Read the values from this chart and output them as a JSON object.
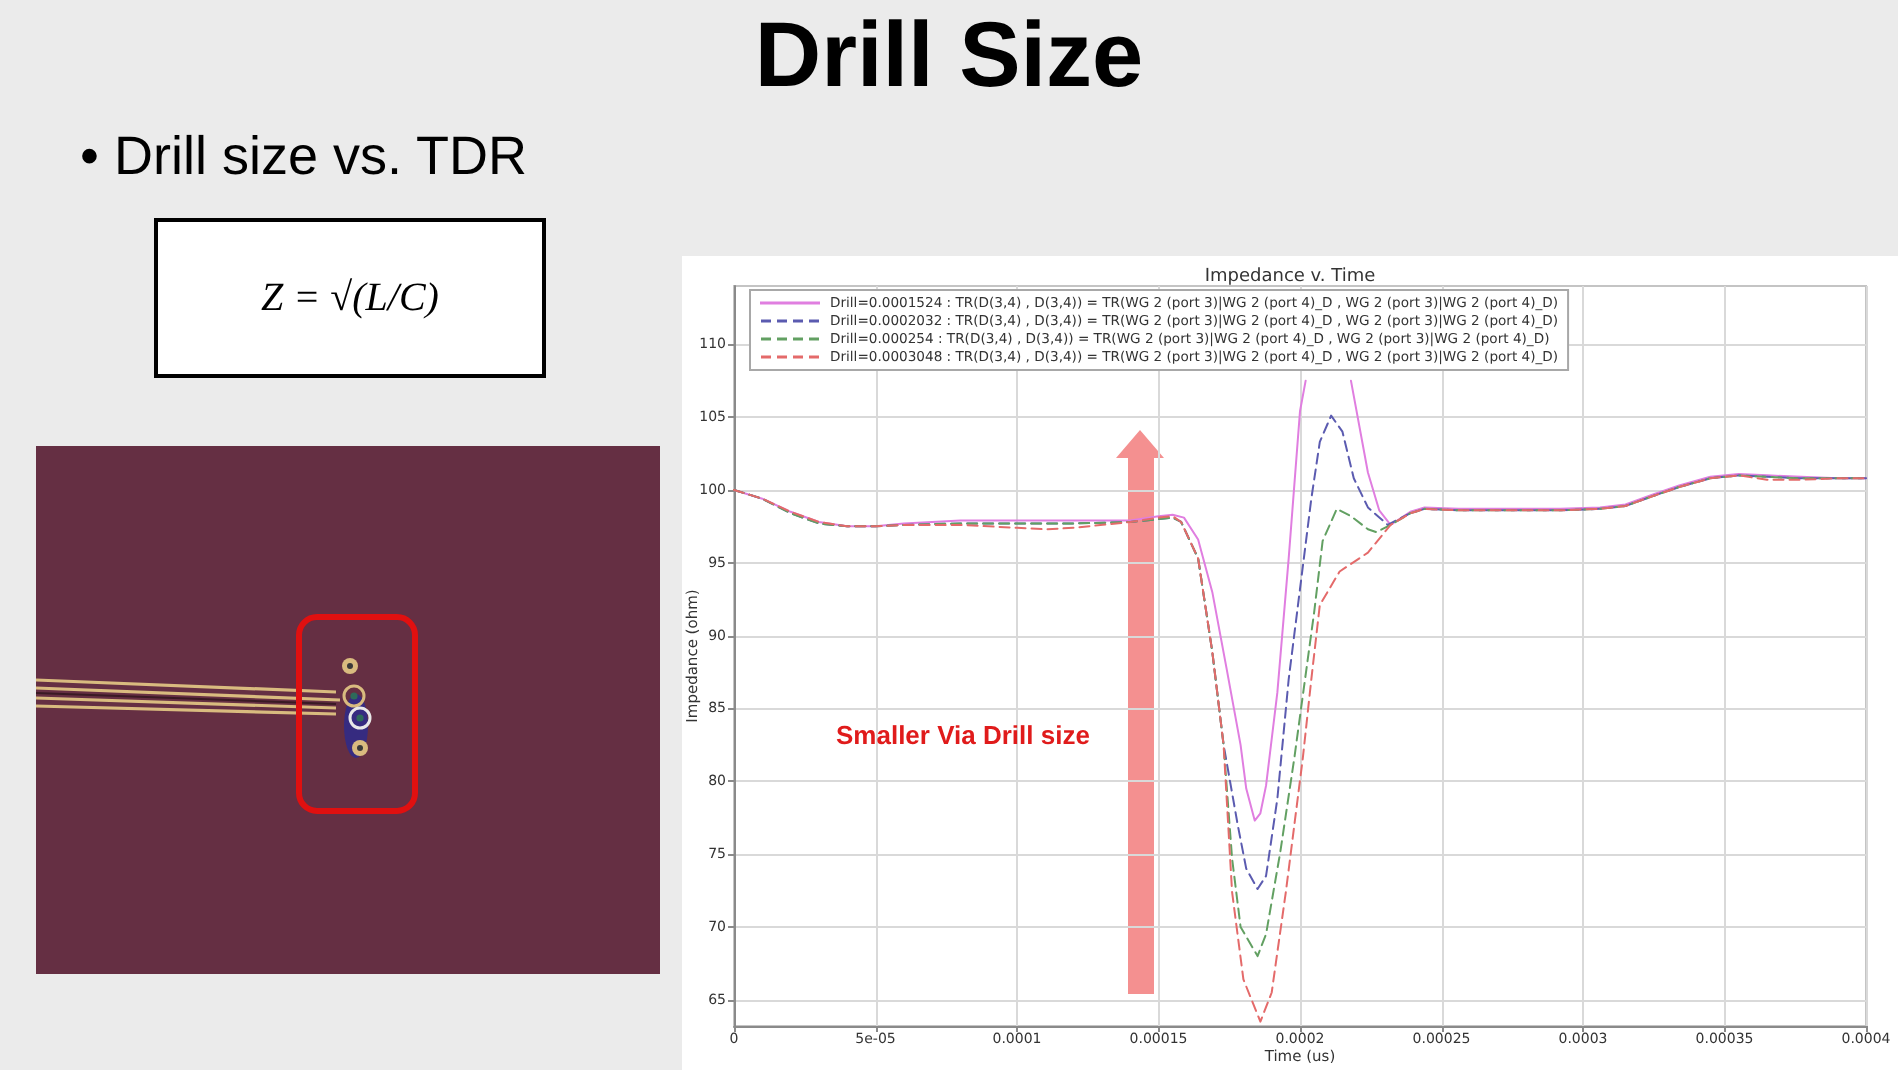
{
  "chart_data": {
    "type": "line",
    "title": "Impedance v. Time",
    "xlabel": "Time (us)",
    "ylabel": "Impedance (ohm)",
    "annotations": [
      "Drill Size",
      "• Drill size vs. TDR",
      "Z = √(L/C)",
      "Smaller Via Drill size"
    ],
    "xlim": [
      0,
      0.0004
    ],
    "xticks": [
      0,
      {
        "value": 5e-05,
        "label": "5e-05"
      },
      0.0001,
      0.00015,
      0.0002,
      0.00025,
      0.0003,
      0.00035,
      0.0004
    ],
    "ylim": [
      63.2,
      114
    ],
    "yticks": [
      65,
      70,
      75,
      80,
      85,
      90,
      95,
      100,
      105,
      110
    ],
    "grid": true,
    "legend": "top left",
    "marker": "none",
    "series": [
      {
        "name": "Drill=0.0001524 : TR(D(3,4) , D(3,4)) = TR(WG 2 (port 3)|WG 2 (port 4)_D , WG 2 (port 3)|WG 2 (port 4)_D)",
        "color": "#e07ee0",
        "line_style": "solid",
        "x": [
          0,
          1e-05,
          2e-05,
          3e-05,
          4e-05,
          5e-05,
          6e-05,
          8e-05,
          0.0001,
          0.00012,
          0.00014,
          0.00015,
          0.000155,
          0.000159,
          0.000164,
          0.000169,
          0.000174,
          0.000179,
          0.000181,
          0.000184,
          0.000186,
          0.000188,
          0.000192,
          0.000196,
          0.0002,
          0.000202,
          0.00021,
          0.000218,
          0.000224,
          0.000228,
          0.000232,
          0.000239,
          0.000244,
          0.000256,
          0.000271,
          0.000292,
          0.000306,
          0.000315,
          0.000325,
          0.000334,
          0.000345,
          0.000355,
          0.000365,
          0.000377,
          0.00039,
          0.0004
        ],
        "values": [
          100,
          99.4,
          98.5,
          97.8,
          97.5,
          97.5,
          97.7,
          97.9,
          97.9,
          97.9,
          97.9,
          98.2,
          98.3,
          98.1,
          96.6,
          93.0,
          87.8,
          82.5,
          79.5,
          77.3,
          77.8,
          79.7,
          86.1,
          95.3,
          105.4,
          107.5,
          null,
          107.5,
          101.2,
          98.6,
          97.6,
          98.5,
          98.8,
          98.7,
          98.7,
          98.7,
          98.8,
          99.0,
          99.7,
          100.3,
          100.9,
          101.1,
          101.0,
          100.9,
          100.8,
          100.8
        ]
      },
      {
        "name": "Drill=0.0002032 : TR(D(3,4) , D(3,4)) = TR(WG 2 (port 3)|WG 2 (port 4)_D , WG 2 (port 3)|WG 2 (port 4)_D)",
        "color": "#5b5bb0",
        "line_style": "dashed",
        "x": [
          0,
          1e-05,
          2e-05,
          3e-05,
          4e-05,
          5e-05,
          6e-05,
          8e-05,
          0.0001,
          0.00012,
          0.00014,
          0.00015,
          0.000155,
          0.000158,
          0.000164,
          0.000169,
          0.000173,
          0.000178,
          0.000181,
          0.000185,
          0.000188,
          0.000192,
          0.000196,
          0.0002,
          0.000204,
          0.000207,
          0.000211,
          0.000215,
          0.000219,
          0.000224,
          0.000231,
          0.000239,
          0.000244,
          0.000256,
          0.000271,
          0.000292,
          0.000306,
          0.000315,
          0.000325,
          0.000334,
          0.000345,
          0.000355,
          0.000365,
          0.000377,
          0.00039,
          0.0004
        ],
        "values": [
          100,
          99.4,
          98.4,
          97.7,
          97.5,
          97.5,
          97.6,
          97.7,
          97.7,
          97.7,
          97.8,
          98.0,
          98.1,
          97.8,
          95.3,
          88.9,
          82.5,
          77.0,
          74.0,
          72.6,
          73.5,
          78.8,
          87.0,
          93.2,
          99.4,
          103.3,
          105.1,
          104.0,
          100.8,
          98.8,
          97.6,
          98.4,
          98.7,
          98.6,
          98.6,
          98.6,
          98.7,
          98.9,
          99.6,
          100.2,
          100.8,
          101.0,
          100.9,
          100.8,
          100.8,
          100.8
        ]
      },
      {
        "name": "Drill=0.000254 : TR(D(3,4) , D(3,4)) = TR(WG 2 (port 3)|WG 2 (port 4)_D , WG 2 (port 3)|WG 2 (port 4)_D)",
        "color": "#62a062",
        "line_style": "dashed",
        "x": [
          0,
          1e-05,
          2e-05,
          3e-05,
          4e-05,
          5e-05,
          6e-05,
          8e-05,
          0.0001,
          0.00012,
          0.00014,
          0.00015,
          0.000155,
          0.000158,
          0.000164,
          0.000169,
          0.000173,
          0.000176,
          0.000179,
          0.000185,
          0.000188,
          0.000193,
          0.000198,
          0.000205,
          0.000208,
          0.000213,
          0.000218,
          0.000224,
          0.000227,
          0.000232,
          0.000239,
          0.000244,
          0.000256,
          0.000271,
          0.000292,
          0.000306,
          0.000315,
          0.000325,
          0.000334,
          0.000345,
          0.000355,
          0.000365,
          0.000377,
          0.00039,
          0.0004
        ],
        "values": [
          100,
          99.4,
          98.4,
          97.7,
          97.5,
          97.5,
          97.6,
          97.7,
          97.7,
          97.7,
          97.8,
          98.0,
          98.1,
          97.8,
          95.3,
          88.9,
          82.5,
          74.7,
          70.0,
          68.0,
          69.5,
          75.1,
          81.6,
          91.6,
          96.5,
          98.7,
          98.2,
          97.3,
          97.1,
          97.6,
          98.4,
          98.7,
          98.6,
          98.6,
          98.6,
          98.7,
          98.9,
          99.6,
          100.2,
          100.8,
          101.0,
          100.9,
          100.8,
          100.8,
          100.8
        ]
      },
      {
        "name": "Drill=0.0003048 : TR(D(3,4) , D(3,4)) = TR(WG 2 (port 3)|WG 2 (port 4)_D , WG 2 (port 3)|WG 2 (port 4)_D)",
        "color": "#e46a6a",
        "line_style": "dashed",
        "x": [
          0,
          1e-05,
          2e-05,
          3e-05,
          4e-05,
          5e-05,
          6e-05,
          8e-05,
          0.0001,
          0.00011,
          0.00012,
          0.00014,
          0.00015,
          0.000155,
          0.000158,
          0.000164,
          0.000169,
          0.000173,
          0.000176,
          0.00018,
          0.000186,
          0.00019,
          0.000195,
          0.000201,
          0.000204,
          0.000207,
          0.000214,
          0.000224,
          0.000232,
          0.000239,
          0.000244,
          0.000256,
          0.000271,
          0.000292,
          0.000306,
          0.000315,
          0.000325,
          0.000334,
          0.000345,
          0.000355,
          0.000365,
          0.000377,
          0.00039,
          0.0004
        ],
        "values": [
          100,
          99.4,
          98.5,
          97.8,
          97.5,
          97.5,
          97.6,
          97.6,
          97.4,
          97.3,
          97.4,
          97.8,
          98.1,
          98.2,
          97.8,
          95.3,
          88.9,
          82.5,
          72.4,
          66.4,
          63.5,
          65.5,
          72.4,
          81.6,
          87.0,
          92.1,
          94.4,
          95.7,
          97.6,
          98.4,
          98.7,
          98.6,
          98.6,
          98.6,
          98.7,
          98.9,
          99.6,
          100.2,
          100.8,
          101.0,
          100.7,
          100.7,
          100.8,
          100.8
        ]
      }
    ]
  }
}
